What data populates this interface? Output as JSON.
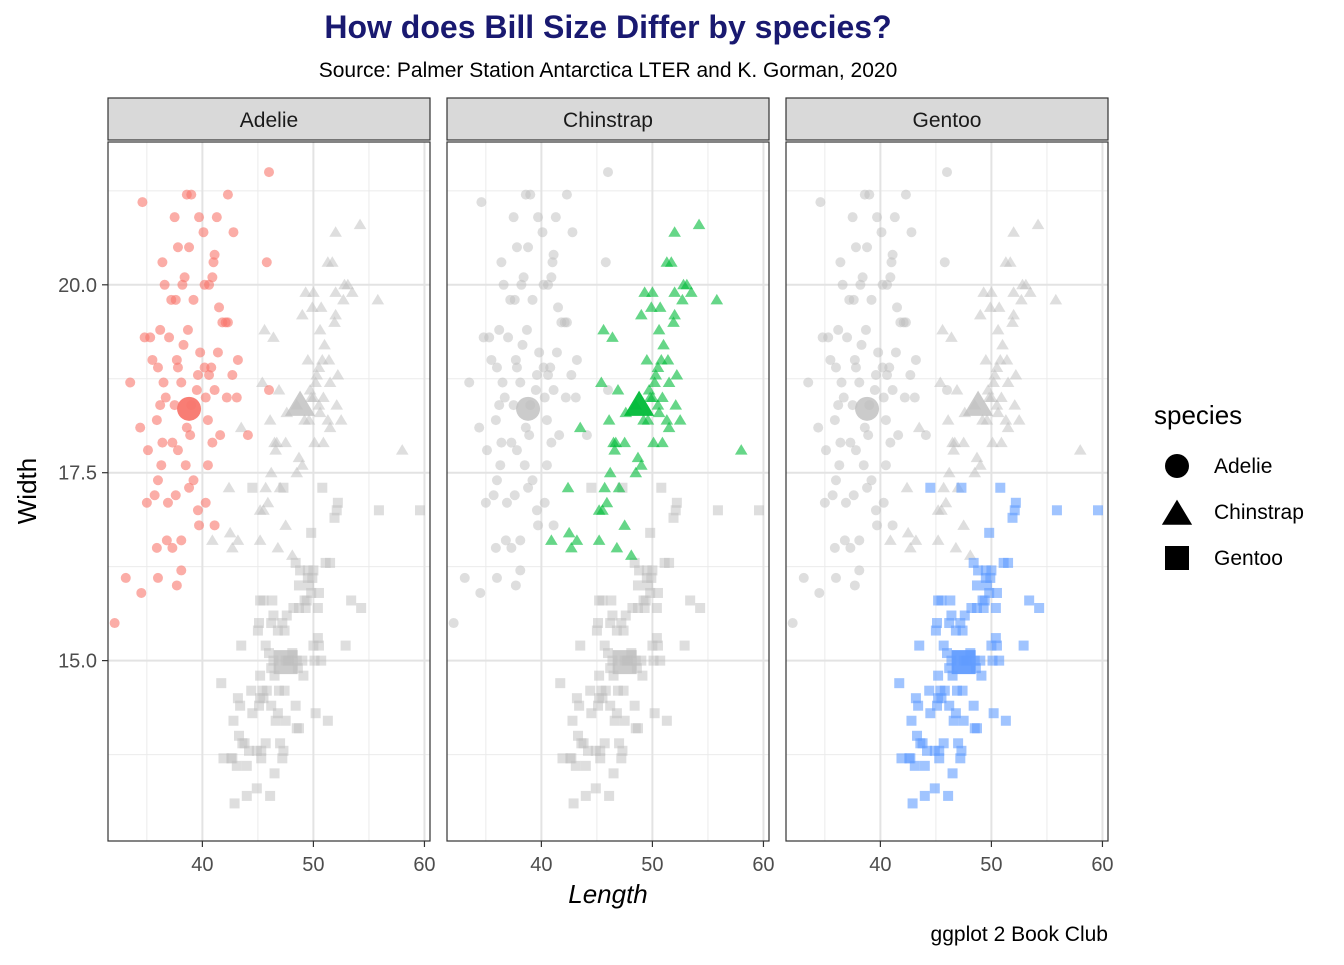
{
  "chart_data": {
    "type": "scatter",
    "title": "How does Bill Size Differ by species?",
    "subtitle": "Source: Palmer Station Antarctica LTER and K. Gorman, 2020",
    "caption": "ggplot 2 Book Club",
    "xlabel": "Length",
    "ylabel": "Width",
    "xlim": [
      31.5,
      60.5
    ],
    "ylim": [
      12.6,
      21.9
    ],
    "x_ticks": [
      40,
      50,
      60
    ],
    "x_tick_labels": [
      "40",
      "50",
      "60"
    ],
    "y_ticks": [
      15.0,
      17.5,
      20.0
    ],
    "y_tick_labels": [
      "15.0",
      "17.5",
      "20.0"
    ],
    "grid": true,
    "facets": [
      "Adelie",
      "Chinstrap",
      "Gentoo"
    ],
    "legend": {
      "title": "species",
      "placement": "right",
      "items": [
        {
          "label": "Adelie",
          "shape": "circle"
        },
        {
          "label": "Chinstrap",
          "shape": "triangle"
        },
        {
          "label": "Gentoo",
          "shape": "square"
        }
      ]
    },
    "colors": {
      "Adelie": "#F8766D",
      "Chinstrap": "#00BA38",
      "Gentoo": "#619CFF",
      "background_points": "#BEBEBE",
      "strip_fill": "#D9D9D9",
      "title": "#191970"
    },
    "series": [
      {
        "name": "Adelie",
        "shape": "circle",
        "mean": [
          38.8,
          18.35
        ],
        "points": [
          [
            46.0,
            21.5
          ],
          [
            38.6,
            21.2
          ],
          [
            39.0,
            21.2
          ],
          [
            42.3,
            21.2
          ],
          [
            34.6,
            21.1
          ],
          [
            39.7,
            20.9
          ],
          [
            41.3,
            20.9
          ],
          [
            37.5,
            20.9
          ],
          [
            42.8,
            20.7
          ],
          [
            40.1,
            20.7
          ],
          [
            37.8,
            20.5
          ],
          [
            38.8,
            20.5
          ],
          [
            41.1,
            20.4
          ],
          [
            36.4,
            20.3
          ],
          [
            41.0,
            20.3
          ],
          [
            45.8,
            20.3
          ],
          [
            38.4,
            20.1
          ],
          [
            40.9,
            20.1
          ],
          [
            40.2,
            20.0
          ],
          [
            36.6,
            20.0
          ],
          [
            38.2,
            20.0
          ],
          [
            40.6,
            20.0
          ],
          [
            37.6,
            19.8
          ],
          [
            37.2,
            19.8
          ],
          [
            39.2,
            19.8
          ],
          [
            41.5,
            19.7
          ],
          [
            42.1,
            19.5
          ],
          [
            41.8,
            19.5
          ],
          [
            42.3,
            19.5
          ],
          [
            36.2,
            19.4
          ],
          [
            38.7,
            19.4
          ],
          [
            34.8,
            19.3
          ],
          [
            35.3,
            19.3
          ],
          [
            37.0,
            19.3
          ],
          [
            39.8,
            19.1
          ],
          [
            41.4,
            19.1
          ],
          [
            38.3,
            19.2
          ],
          [
            37.7,
            19.0
          ],
          [
            35.5,
            19.0
          ],
          [
            43.2,
            19.0
          ],
          [
            36.0,
            18.9
          ],
          [
            37.8,
            18.9
          ],
          [
            40.2,
            18.9
          ],
          [
            39.6,
            18.8
          ],
          [
            42.7,
            18.8
          ],
          [
            40.8,
            18.9
          ],
          [
            33.5,
            18.7
          ],
          [
            36.5,
            18.7
          ],
          [
            38.1,
            18.7
          ],
          [
            40.6,
            18.8
          ],
          [
            39.5,
            18.6
          ],
          [
            41.1,
            18.6
          ],
          [
            46.0,
            18.6
          ],
          [
            36.2,
            18.4
          ],
          [
            37.5,
            18.4
          ],
          [
            39.0,
            18.4
          ],
          [
            36.7,
            18.5
          ],
          [
            40.3,
            18.5
          ],
          [
            42.2,
            18.5
          ],
          [
            43.1,
            18.5
          ],
          [
            35.9,
            18.2
          ],
          [
            34.4,
            18.1
          ],
          [
            38.6,
            18.1
          ],
          [
            40.5,
            18.2
          ],
          [
            41.6,
            18.0
          ],
          [
            37.3,
            17.9
          ],
          [
            38.9,
            18.0
          ],
          [
            36.4,
            17.9
          ],
          [
            35.1,
            17.8
          ],
          [
            37.8,
            17.8
          ],
          [
            40.9,
            17.9
          ],
          [
            44.1,
            18.0
          ],
          [
            36.3,
            17.6
          ],
          [
            38.5,
            17.6
          ],
          [
            40.5,
            17.6
          ],
          [
            39.2,
            17.4
          ],
          [
            36.0,
            17.4
          ],
          [
            35.7,
            17.2
          ],
          [
            37.6,
            17.2
          ],
          [
            40.3,
            17.1
          ],
          [
            38.8,
            17.3
          ],
          [
            36.9,
            17.1
          ],
          [
            39.6,
            17.0
          ],
          [
            35.0,
            17.1
          ],
          [
            41.1,
            16.8
          ],
          [
            36.8,
            16.6
          ],
          [
            38.1,
            16.6
          ],
          [
            39.7,
            16.8
          ],
          [
            37.3,
            16.5
          ],
          [
            35.9,
            16.5
          ],
          [
            38.1,
            16.2
          ],
          [
            36.0,
            16.1
          ],
          [
            33.1,
            16.1
          ],
          [
            37.7,
            16.0
          ],
          [
            34.5,
            15.9
          ],
          [
            32.1,
            15.5
          ]
        ]
      },
      {
        "name": "Chinstrap",
        "shape": "triangle",
        "mean": [
          48.8,
          18.4
        ],
        "points": [
          [
            54.2,
            20.8
          ],
          [
            52.0,
            20.7
          ],
          [
            51.3,
            20.3
          ],
          [
            50.0,
            19.9
          ],
          [
            51.7,
            20.3
          ],
          [
            52.0,
            19.9
          ],
          [
            53.5,
            19.9
          ],
          [
            49.0,
            19.6
          ],
          [
            50.6,
            19.4
          ],
          [
            55.8,
            19.8
          ],
          [
            46.4,
            19.3
          ],
          [
            51.0,
            19.2
          ],
          [
            52.0,
            19.6
          ],
          [
            49.3,
            19.9
          ],
          [
            52.8,
            20.0
          ],
          [
            49.5,
            19.0
          ],
          [
            50.3,
            18.8
          ],
          [
            51.5,
            18.7
          ],
          [
            52.2,
            18.8
          ],
          [
            50.5,
            18.9
          ],
          [
            46.9,
            18.6
          ],
          [
            49.8,
            18.5
          ],
          [
            50.9,
            18.5
          ],
          [
            46.2,
            17.5
          ],
          [
            47.0,
            17.3
          ],
          [
            48.5,
            17.5
          ],
          [
            45.7,
            17.3
          ],
          [
            45.2,
            17.0
          ],
          [
            42.5,
            16.7
          ],
          [
            43.5,
            18.1
          ],
          [
            42.4,
            17.3
          ],
          [
            46.7,
            17.9
          ],
          [
            47.6,
            18.3
          ],
          [
            49.2,
            18.2
          ],
          [
            50.2,
            18.7
          ],
          [
            51.9,
            19.5
          ],
          [
            52.7,
            19.8
          ],
          [
            50.8,
            19.0
          ],
          [
            49.7,
            18.6
          ],
          [
            46.5,
            17.9
          ],
          [
            45.5,
            17.0
          ],
          [
            46.1,
            18.2
          ],
          [
            46.8,
            16.5
          ],
          [
            50.1,
            17.9
          ],
          [
            47.5,
            16.8
          ],
          [
            51.4,
            19.0
          ],
          [
            45.4,
            18.7
          ],
          [
            45.9,
            17.1
          ],
          [
            50.7,
            19.7
          ],
          [
            47.5,
            17.9
          ],
          [
            52.5,
            18.2
          ],
          [
            48.5,
            18.4
          ],
          [
            50.9,
            17.9
          ],
          [
            51.3,
            18.2
          ],
          [
            58.0,
            17.8
          ],
          [
            49.0,
            17.6
          ],
          [
            45.6,
            19.4
          ],
          [
            40.9,
            16.6
          ],
          [
            43.2,
            16.6
          ],
          [
            42.7,
            16.5
          ],
          [
            45.2,
            16.6
          ],
          [
            46.6,
            17.8
          ],
          [
            48.1,
            16.4
          ],
          [
            50.5,
            18.4
          ],
          [
            49.6,
            18.2
          ],
          [
            51.5,
            18.1
          ],
          [
            52.1,
            18.4
          ],
          [
            48.7,
            17.7
          ],
          [
            50.6,
            18.3
          ],
          [
            49.9,
            19.7
          ],
          [
            50.0,
            18.5
          ],
          [
            53.1,
            20.0
          ]
        ]
      },
      {
        "name": "Gentoo",
        "shape": "square",
        "mean": [
          47.5,
          14.98
        ],
        "points": [
          [
            59.6,
            17.0
          ],
          [
            55.9,
            17.0
          ],
          [
            52.2,
            17.1
          ],
          [
            51.9,
            16.9
          ],
          [
            50.8,
            17.3
          ],
          [
            44.5,
            17.3
          ],
          [
            47.3,
            17.3
          ],
          [
            49.8,
            16.7
          ],
          [
            50.0,
            16.2
          ],
          [
            49.3,
            15.7
          ],
          [
            48.7,
            16.0
          ],
          [
            49.2,
            15.8
          ],
          [
            49.5,
            16.1
          ],
          [
            50.5,
            15.9
          ],
          [
            50.4,
            15.7
          ],
          [
            47.6,
            15.6
          ],
          [
            46.2,
            15.5
          ],
          [
            47.4,
            15.4
          ],
          [
            48.2,
            15.7
          ],
          [
            49.6,
            16.0
          ],
          [
            45.5,
            15.8
          ],
          [
            45.1,
            15.5
          ],
          [
            51.1,
            16.3
          ],
          [
            53.4,
            15.8
          ],
          [
            54.3,
            15.7
          ],
          [
            52.9,
            15.2
          ],
          [
            51.5,
            16.3
          ],
          [
            46.4,
            15.0
          ],
          [
            48.4,
            14.4
          ],
          [
            45.7,
            13.9
          ],
          [
            45.0,
            15.4
          ],
          [
            43.8,
            13.9
          ],
          [
            44.9,
            13.8
          ],
          [
            45.2,
            14.5
          ],
          [
            46.6,
            14.2
          ],
          [
            47.5,
            14.2
          ],
          [
            46.8,
            14.3
          ],
          [
            46.1,
            13.2
          ],
          [
            48.5,
            14.1
          ],
          [
            50.4,
            15.3
          ],
          [
            49.1,
            14.8
          ],
          [
            48.6,
            14.9
          ],
          [
            49.9,
            16.1
          ],
          [
            50.0,
            15.2
          ],
          [
            47.2,
            13.7
          ],
          [
            45.3,
            13.7
          ],
          [
            44.2,
            13.8
          ],
          [
            43.6,
            13.9
          ],
          [
            42.6,
            13.7
          ],
          [
            43.3,
            14.0
          ],
          [
            44.0,
            13.6
          ],
          [
            41.7,
            14.7
          ],
          [
            42.7,
            13.7
          ],
          [
            45.8,
            14.6
          ],
          [
            48.4,
            16.3
          ],
          [
            50.7,
            15.0
          ],
          [
            47.2,
            15.5
          ],
          [
            46.9,
            14.6
          ],
          [
            49.4,
            15.8
          ],
          [
            45.3,
            13.8
          ],
          [
            42.8,
            14.2
          ],
          [
            43.2,
            14.5
          ],
          [
            47.8,
            15.0
          ],
          [
            46.5,
            13.5
          ],
          [
            44.5,
            14.3
          ],
          [
            48.7,
            14.1
          ],
          [
            50.5,
            15.2
          ],
          [
            49.8,
            15.9
          ],
          [
            46.2,
            14.9
          ],
          [
            43.4,
            14.4
          ],
          [
            45.2,
            14.8
          ],
          [
            47.7,
            15.0
          ],
          [
            46.3,
            15.8
          ],
          [
            44.9,
            13.3
          ],
          [
            45.2,
            15.8
          ],
          [
            42.9,
            13.1
          ],
          [
            49.0,
            15.0
          ],
          [
            43.5,
            15.2
          ],
          [
            48.1,
            15.1
          ],
          [
            51.3,
            14.2
          ],
          [
            46.4,
            15.6
          ],
          [
            47.3,
            13.8
          ],
          [
            45.1,
            14.4
          ],
          [
            48.8,
            16.2
          ],
          [
            49.5,
            16.2
          ],
          [
            46.5,
            14.8
          ],
          [
            47.4,
            14.6
          ],
          [
            44.4,
            14.6
          ],
          [
            46.2,
            14.4
          ],
          [
            45.5,
            14.5
          ],
          [
            46.8,
            15.4
          ],
          [
            50.1,
            15.0
          ],
          [
            48.5,
            15.0
          ],
          [
            47.5,
            15.0
          ],
          [
            45.4,
            14.6
          ],
          [
            43.1,
            13.6
          ],
          [
            46.0,
            15.1
          ],
          [
            47.0,
            13.9
          ],
          [
            45.7,
            15.2
          ],
          [
            52.1,
            17.0
          ],
          [
            50.2,
            14.3
          ],
          [
            48.7,
            15.7
          ],
          [
            41.9,
            13.7
          ],
          [
            44.0,
            13.2
          ]
        ]
      }
    ]
  }
}
